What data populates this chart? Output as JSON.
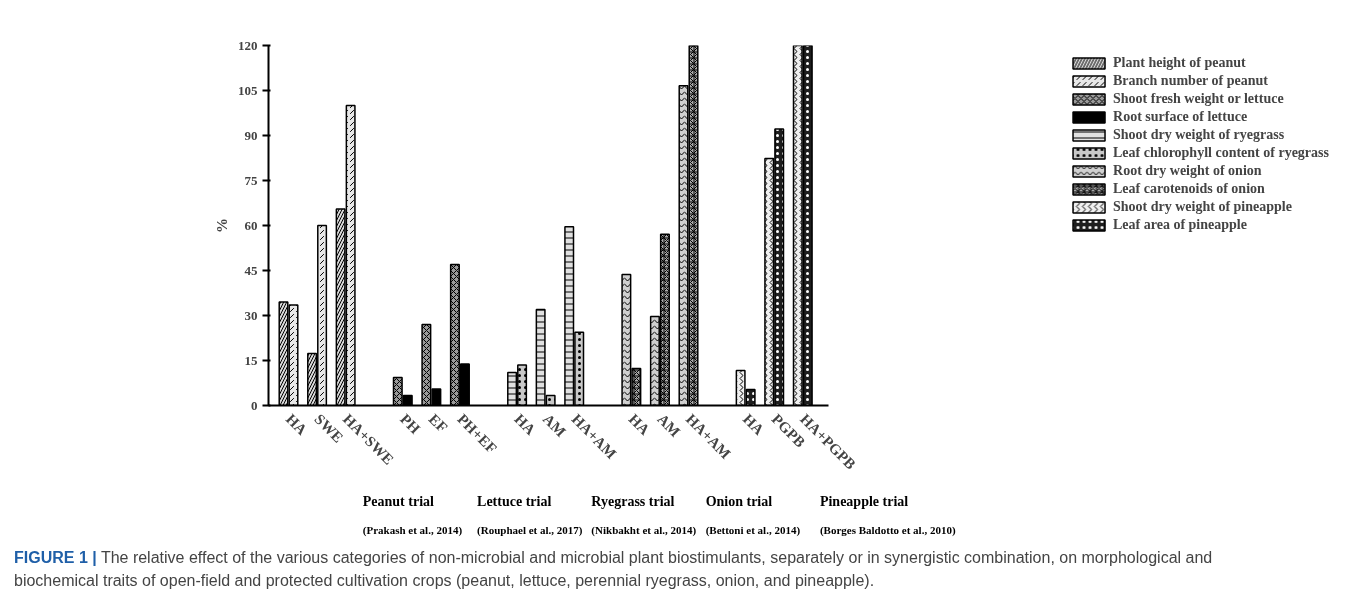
{
  "chart_data": {
    "type": "bar",
    "ylabel": "%",
    "categories": [
      "HA",
      "SWE",
      "HA+SWE",
      "PH",
      "EF",
      "PH+EF",
      "HA",
      "AM",
      "HA+AM",
      "HA",
      "AM",
      "HA+AM",
      "HA",
      "PGPB",
      "HA+PGPB"
    ],
    "series": [
      {
        "name": "Plant height of peanut",
        "color": "#d9d9d9",
        "values": [
          34.5,
          17.3,
          65.5,
          null,
          null,
          null,
          null,
          null,
          null,
          null,
          null,
          null,
          null,
          null,
          null
        ]
      },
      {
        "name": "Branch number of peanut",
        "color": "#e8e8e8",
        "values": [
          33.5,
          60,
          100,
          null,
          null,
          null,
          null,
          null,
          null,
          null,
          null,
          null,
          null,
          null,
          null
        ]
      },
      {
        "name": "Shoot fresh weight or lettuce",
        "color": "#9a9a9a",
        "values": [
          null,
          null,
          null,
          9.3,
          27,
          47,
          null,
          null,
          null,
          null,
          null,
          null,
          null,
          null,
          null
        ]
      },
      {
        "name": "Root surface of lettuce",
        "color": "#000000",
        "values": [
          null,
          null,
          null,
          3.3,
          5.5,
          13.8,
          null,
          null,
          null,
          null,
          null,
          null,
          null,
          null,
          null
        ]
      },
      {
        "name": "Shoot dry weight of ryegrass",
        "color": "#e0e0e0",
        "values": [
          null,
          null,
          null,
          null,
          null,
          null,
          11,
          32,
          59.6,
          null,
          null,
          null,
          null,
          null,
          null
        ]
      },
      {
        "name": "Leaf chlorophyll content of ryegrass",
        "color": "#c8c8c8",
        "values": [
          null,
          null,
          null,
          null,
          null,
          null,
          13.5,
          3.3,
          24.4,
          null,
          null,
          null,
          null,
          null,
          null
        ]
      },
      {
        "name": "Root dry weight of onion",
        "color": "#d0d0d0",
        "values": [
          null,
          null,
          null,
          null,
          null,
          null,
          null,
          null,
          null,
          43.7,
          29.7,
          106.6,
          null,
          null,
          null
        ]
      },
      {
        "name": "Leaf carotenoids of onion",
        "color": "#a8a8a8",
        "values": [
          null,
          null,
          null,
          null,
          null,
          null,
          null,
          null,
          null,
          12.3,
          57.1,
          120,
          null,
          null,
          null
        ]
      },
      {
        "name": "Shoot dry weight of pineapple",
        "color": "#efefef",
        "values": [
          null,
          null,
          null,
          null,
          null,
          null,
          null,
          null,
          null,
          null,
          null,
          null,
          11.7,
          82.3,
          120
        ]
      },
      {
        "name": "Leaf area of pineapple",
        "color": "#1e1e1e",
        "values": [
          null,
          null,
          null,
          null,
          null,
          null,
          null,
          null,
          null,
          null,
          null,
          null,
          5.3,
          92.2,
          120
        ]
      }
    ],
    "ylim": [
      0,
      120
    ],
    "yticks": [
      0,
      15,
      30,
      45,
      60,
      75,
      90,
      105,
      120
    ],
    "grid": false,
    "legend": "top right",
    "annotations": [
      "Peanut trial",
      "Lettuce trial",
      "Ryegrass trial",
      "Onion trial",
      "Pineapple trial",
      "(Prakash et al., 2014)",
      "(Rouphael et al., 2017)",
      "(Nikbakht et al., 2014)",
      "(Bettoni et al., 2014)",
      "(Borges Baldotto et al., 2010)",
      "FIGURE 1 | The relative effect of the various categories of non-microbial and microbial plant biostimulants, separately or in synergistic combination, on morphological and biochemical traits of open-field and protected cultivation crops (peanut, lettuce, perennial ryegrass, onion, and pineapple)."
    ]
  }
}
